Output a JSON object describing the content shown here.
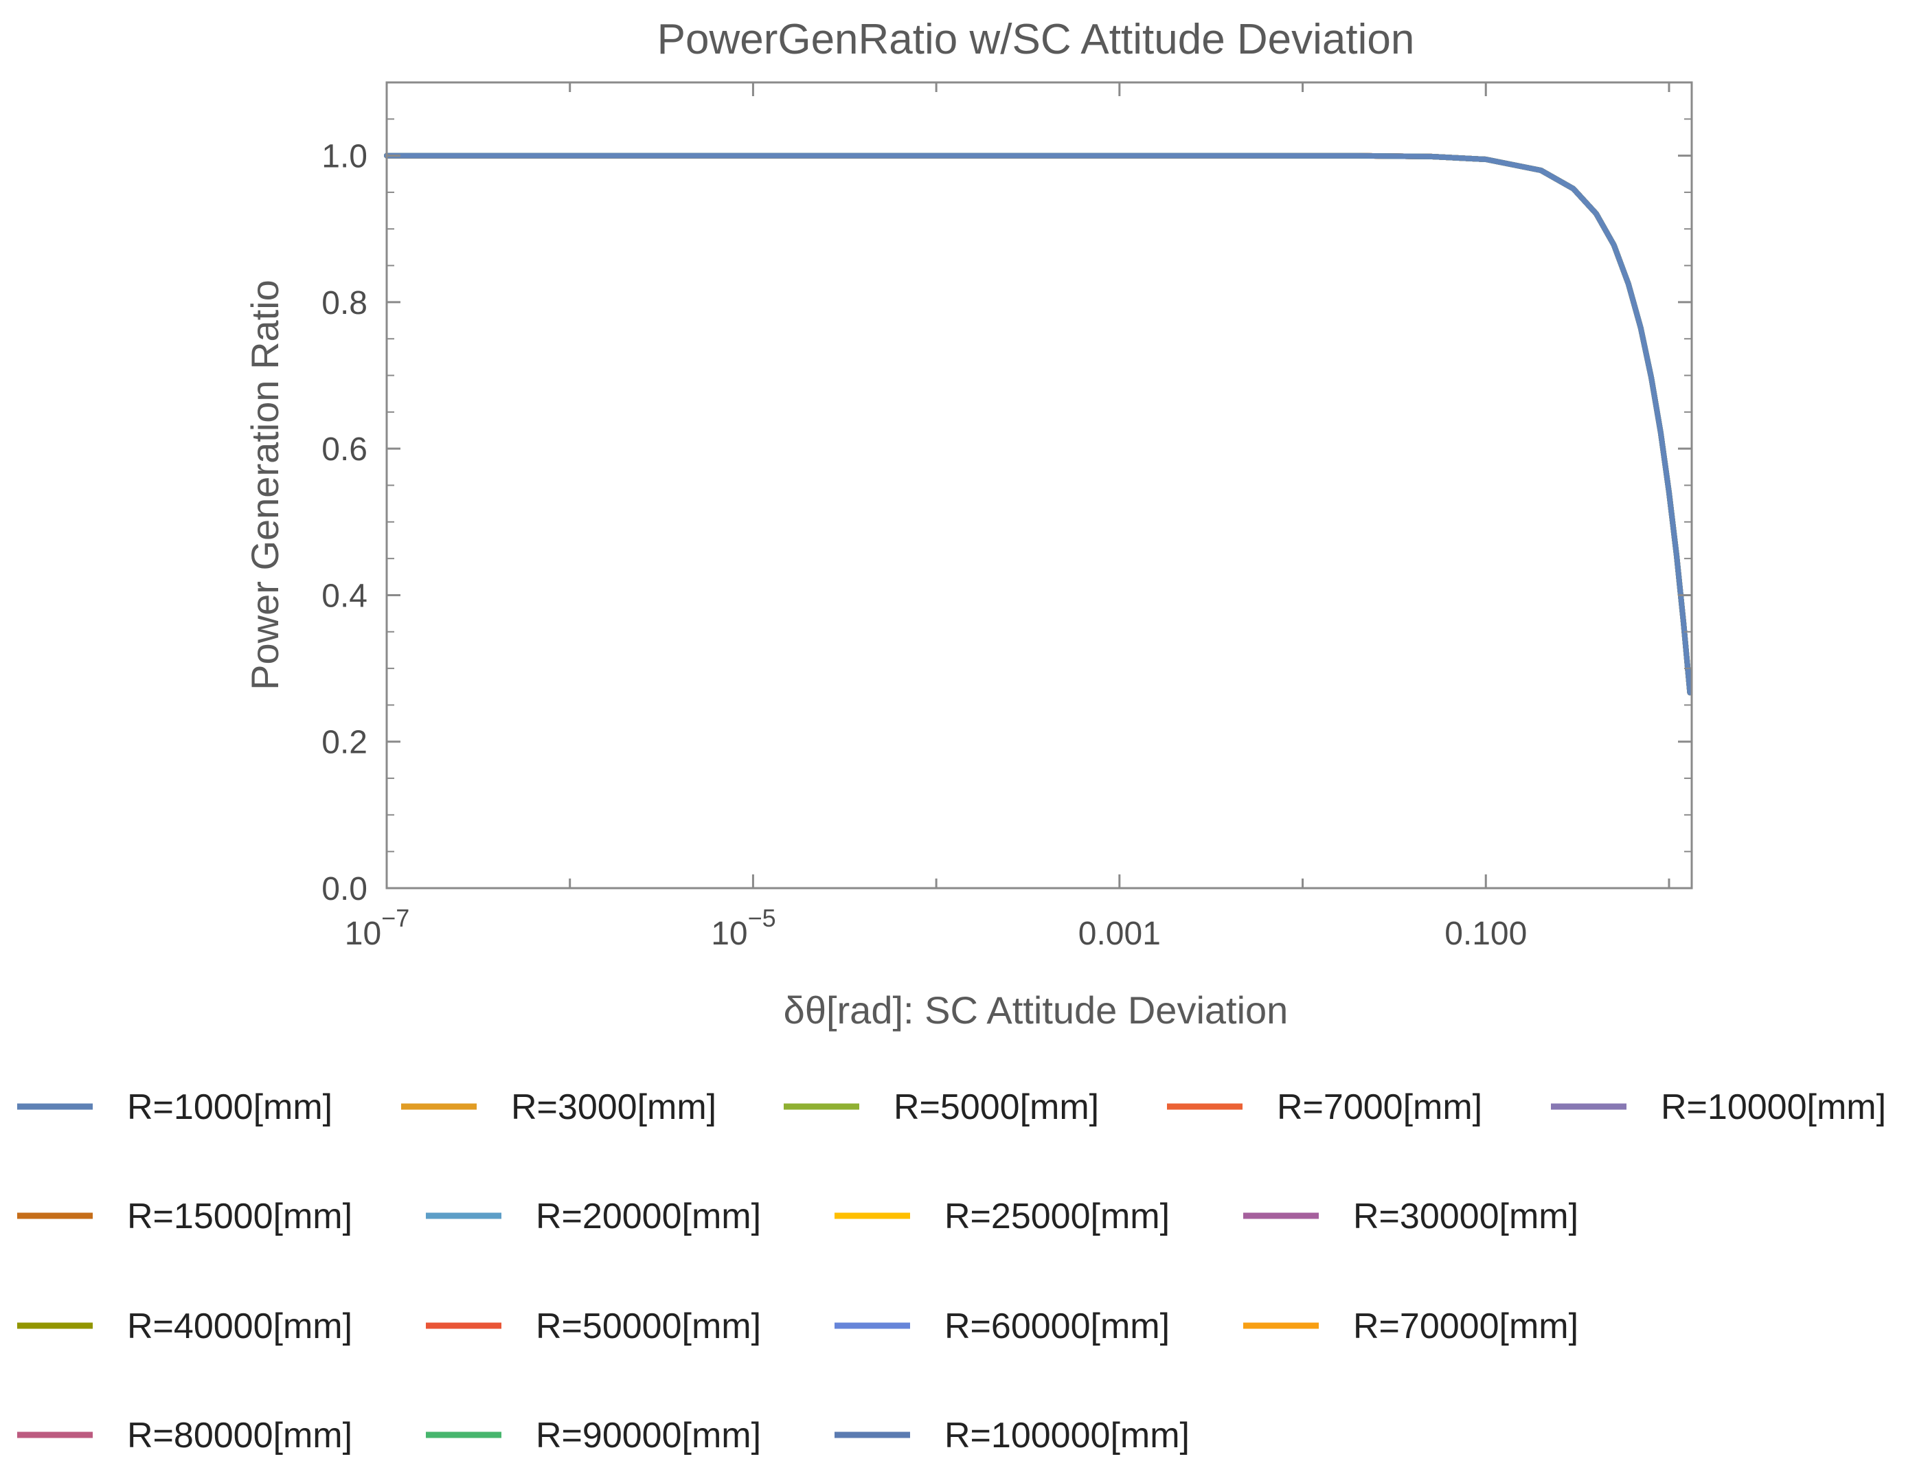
{
  "chart_data": {
    "type": "line",
    "title": "PowerGenRatio w/SC Attitude Deviation",
    "xlabel": "δθ[rad]: SC Attitude Deviation",
    "ylabel": "Power Generation Ratio",
    "xscale": "log",
    "xlim": [
      1e-07,
      1.33
    ],
    "ylim": [
      0,
      1.1
    ],
    "x_ticks": [
      {
        "value": 1e-07,
        "base": "10",
        "exp": "−7"
      },
      {
        "value": 1e-05,
        "base": "10",
        "exp": "−5"
      },
      {
        "value": 0.001,
        "label": "0.001"
      },
      {
        "value": 0.1,
        "label": "0.100"
      }
    ],
    "y_ticks": [
      {
        "value": 0.0,
        "label": "0.0"
      },
      {
        "value": 0.2,
        "label": "0.2"
      },
      {
        "value": 0.4,
        "label": "0.4"
      },
      {
        "value": 0.6,
        "label": "0.6"
      },
      {
        "value": 0.8,
        "label": "0.8"
      },
      {
        "value": 1.0,
        "label": "1.0"
      }
    ],
    "curve_x": [
      1e-07,
      1e-06,
      1e-05,
      0.0001,
      0.001,
      0.005,
      0.01,
      0.02,
      0.05,
      0.1,
      0.2,
      0.3,
      0.4,
      0.5,
      0.6,
      0.7,
      0.8,
      0.9,
      1.0,
      1.1,
      1.2,
      1.3
    ],
    "curve_y": [
      1.0,
      1.0,
      1.0,
      1.0,
      1.0,
      0.99999,
      0.99995,
      0.9998,
      0.9988,
      0.995,
      0.98,
      0.955,
      0.921,
      0.878,
      0.825,
      0.765,
      0.697,
      0.622,
      0.54,
      0.454,
      0.362,
      0.267
    ],
    "series": [
      {
        "name": "R=1000[mm]",
        "color": "#5e81b5"
      },
      {
        "name": "R=3000[mm]",
        "color": "#e19c24"
      },
      {
        "name": "R=5000[mm]",
        "color": "#8fb032"
      },
      {
        "name": "R=7000[mm]",
        "color": "#eb6235"
      },
      {
        "name": "R=10000[mm]",
        "color": "#8778b3"
      },
      {
        "name": "R=15000[mm]",
        "color": "#c56e1a"
      },
      {
        "name": "R=20000[mm]",
        "color": "#5d9ec7"
      },
      {
        "name": "R=25000[mm]",
        "color": "#ffbf00"
      },
      {
        "name": "R=30000[mm]",
        "color": "#a5609d"
      },
      {
        "name": "R=40000[mm]",
        "color": "#929600"
      },
      {
        "name": "R=50000[mm]",
        "color": "#e95536"
      },
      {
        "name": "R=60000[mm]",
        "color": "#6685d9"
      },
      {
        "name": "R=70000[mm]",
        "color": "#f89f13"
      },
      {
        "name": "R=80000[mm]",
        "color": "#bc5b80"
      },
      {
        "name": "R=90000[mm]",
        "color": "#47b66d"
      },
      {
        "name": "R=100000[mm]",
        "color": "#5b7bb1"
      }
    ],
    "visible_series_color": "#6185ba",
    "legend_position": "bottom"
  }
}
